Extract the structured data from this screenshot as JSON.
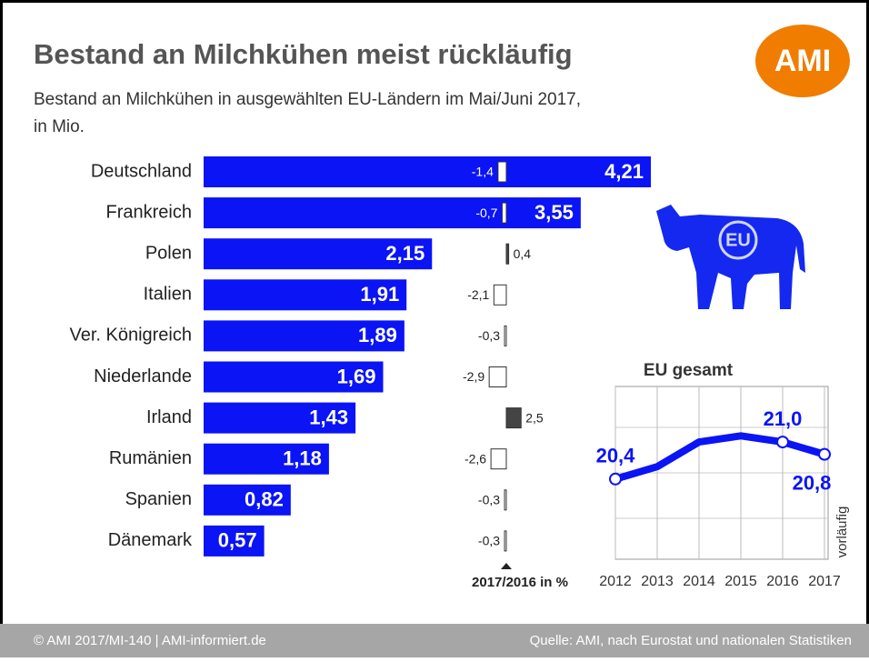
{
  "header": {
    "title": "Bestand an Milchkühen meist rückläufig",
    "subtitle": [
      "Bestand an Milchkühen in ausgewählten EU-Ländern im Mai/Juni 2017,",
      "in Mio."
    ]
  },
  "logo": "AMI",
  "cow_label": "EU",
  "chart_data": [
    {
      "type": "bar",
      "orientation": "horizontal",
      "color": "#0a14f5",
      "categories": [
        "Deutschland",
        "Frankreich",
        "Polen",
        "Italien",
        "Ver. Königreich",
        "Niederlande",
        "Irland",
        "Rumänien",
        "Spanien",
        "Dänemark"
      ],
      "values": [
        4.21,
        3.55,
        2.15,
        1.91,
        1.89,
        1.69,
        1.43,
        1.18,
        0.82,
        0.57
      ],
      "value_labels": [
        "4,21",
        "3,55",
        "2,15",
        "1,91",
        "1,89",
        "1,69",
        "1,43",
        "1,18",
        "0,82",
        "0,57"
      ]
    },
    {
      "type": "change",
      "x_label": "2017/2016 in %",
      "positive_color": "#444444",
      "negative_color": "#ffffff",
      "values": [
        -1.4,
        -0.7,
        0.4,
        -2.1,
        -0.3,
        -2.9,
        2.5,
        -2.6,
        -0.3,
        -0.3
      ],
      "value_labels": [
        "-1,4",
        "-0,7",
        "0,4",
        "-2,1",
        "-0,3",
        "-2,9",
        "2,5",
        "-2,6",
        "-0,3",
        "-0,3"
      ]
    },
    {
      "type": "line",
      "title": "EU gesamt",
      "color": "#0a14f5",
      "note": "vorläufig",
      "categories": [
        "2012",
        "2013",
        "2014",
        "2015",
        "2016",
        "2017"
      ],
      "values": [
        20.4,
        20.6,
        21.0,
        21.1,
        21.0,
        20.8
      ],
      "value_labels": [
        "20,4",
        null,
        null,
        null,
        "21,0",
        "20,8"
      ],
      "ylim": [
        19.1,
        21.9
      ]
    }
  ],
  "footer": {
    "left": "© AMI 2017/MI-140 | AMI-informiert.de",
    "right": "Quelle: AMI, nach Eurostat und nationalen Statistiken"
  }
}
